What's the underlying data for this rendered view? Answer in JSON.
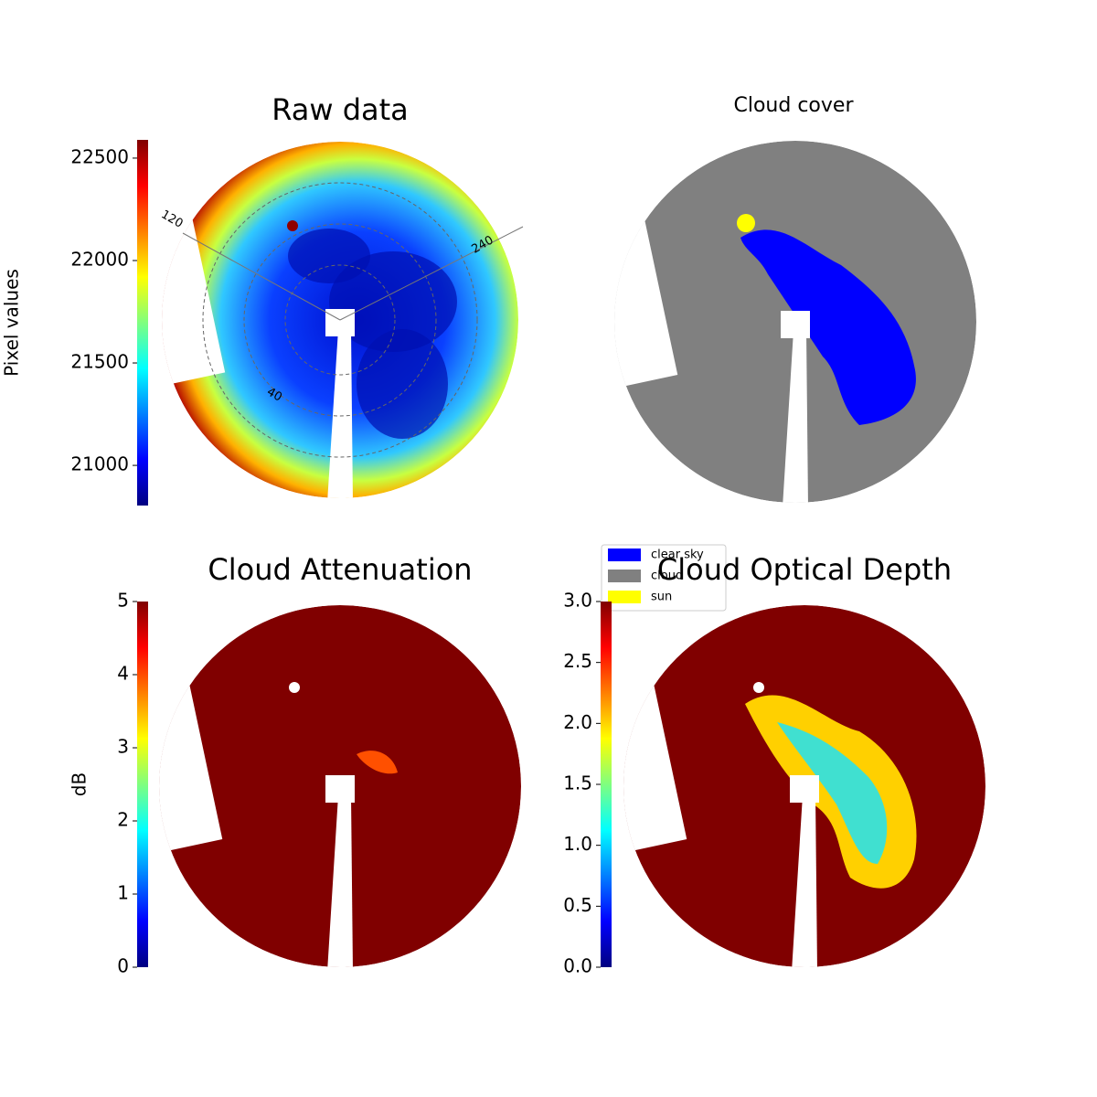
{
  "chart_data": [
    {
      "type": "image",
      "title": "Raw data",
      "colorbar_label": "Pixel values",
      "colormap": "jet",
      "ylim": [
        20804,
        22589
      ],
      "yticks": [
        21000,
        21500,
        22000,
        22500
      ],
      "annotations": [
        "120",
        "240",
        "40"
      ]
    },
    {
      "type": "image",
      "title": "Cloud cover",
      "legend": [
        {
          "name": "clear sky",
          "color": "#0000ff"
        },
        {
          "name": "cloud",
          "color": "#808080"
        },
        {
          "name": "sun",
          "color": "#ffff00"
        }
      ]
    },
    {
      "type": "image",
      "title": "Cloud Attenuation",
      "colorbar_label": "dB",
      "colormap": "jet",
      "ylim": [
        0,
        5
      ],
      "yticks": [
        0,
        1,
        2,
        3,
        4,
        5
      ]
    },
    {
      "type": "image",
      "title": "Cloud Optical Depth",
      "colormap": "jet",
      "ylim": [
        0,
        3
      ],
      "yticks": [
        {
          "value": 0,
          "label": "0.0"
        },
        0.5,
        {
          "value": 1,
          "label": "1.0"
        },
        1.5,
        {
          "value": 2,
          "label": "2.0"
        },
        2.5,
        {
          "value": 3,
          "label": "3.0"
        }
      ]
    }
  ]
}
